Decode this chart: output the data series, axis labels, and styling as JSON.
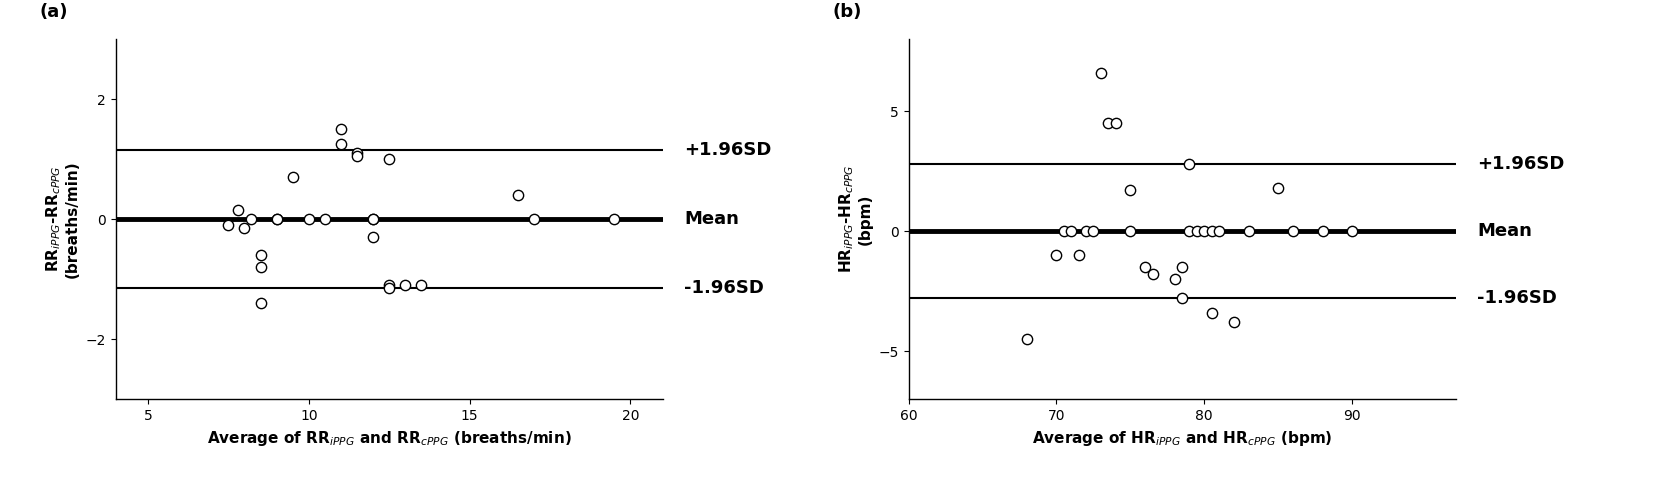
{
  "panel_a": {
    "title": "(a)",
    "xlabel": "Average of RR$_{iPPG}$ and RR$_{cPPG}$ (breaths/min)",
    "ylabel": "RR$_{iPPG}$-RR$_{cPPG}$\n(breaths/min)",
    "xlim": [
      4,
      21
    ],
    "ylim": [
      -3,
      3
    ],
    "xticks": [
      5,
      10,
      15,
      20
    ],
    "yticks": [
      -2,
      0,
      2
    ],
    "mean": 0.0,
    "upper_sd": 1.15,
    "lower_sd": -1.15,
    "scatter_x": [
      7.5,
      7.8,
      8.0,
      8.2,
      8.5,
      8.5,
      8.5,
      9.0,
      9.0,
      9.5,
      10.0,
      10.5,
      11.0,
      11.0,
      11.5,
      11.5,
      12.0,
      12.0,
      12.0,
      12.5,
      12.5,
      12.5,
      13.0,
      13.5,
      16.5,
      17.0,
      19.5
    ],
    "scatter_y": [
      -0.1,
      0.15,
      -0.15,
      0.0,
      -0.6,
      -0.8,
      -1.4,
      0.0,
      0.0,
      0.7,
      0.0,
      0.0,
      1.25,
      1.5,
      1.1,
      1.05,
      -0.3,
      0.0,
      0.0,
      -1.1,
      -1.15,
      1.0,
      -1.1,
      -1.1,
      0.4,
      0.0,
      0.0
    ],
    "label_upper": "+1.96SD",
    "label_mean": "Mean",
    "label_lower": "-1.96SD"
  },
  "panel_b": {
    "title": "(b)",
    "xlabel": "Average of HR$_{iPPG}$ and HR$_{cPPG}$ (bpm)",
    "ylabel": "HR$_{iPPG}$-HR$_{cPPG}$\n(bpm)",
    "xlim": [
      60,
      97
    ],
    "ylim": [
      -7,
      8
    ],
    "xticks": [
      60,
      70,
      80,
      90
    ],
    "yticks": [
      -5,
      0,
      5
    ],
    "mean": 0.0,
    "upper_sd": 2.8,
    "lower_sd": -2.8,
    "scatter_x": [
      68.0,
      70.0,
      70.5,
      71.0,
      71.5,
      72.0,
      72.5,
      73.0,
      73.5,
      74.0,
      75.0,
      75.0,
      76.0,
      76.5,
      78.0,
      78.5,
      78.5,
      79.0,
      79.0,
      79.5,
      80.0,
      80.5,
      80.5,
      81.0,
      82.0,
      83.0,
      85.0,
      86.0,
      88.0,
      90.0
    ],
    "scatter_y": [
      -4.5,
      -1.0,
      0.0,
      0.0,
      -1.0,
      0.0,
      0.0,
      6.6,
      4.5,
      4.5,
      1.7,
      0.0,
      -1.5,
      -1.8,
      -2.0,
      -2.8,
      -1.5,
      0.0,
      2.8,
      0.0,
      0.0,
      0.0,
      -3.4,
      0.0,
      -3.8,
      0.0,
      1.8,
      0.0,
      0.0,
      0.0
    ],
    "label_upper": "+1.96SD",
    "label_mean": "Mean",
    "label_lower": "-1.96SD"
  },
  "figure_bg": "#ffffff",
  "line_color": "#000000",
  "scatter_facecolor": "#ffffff",
  "scatter_edgecolor": "#000000",
  "mean_linewidth": 3.5,
  "sd_linewidth": 1.5,
  "scatter_size": 55,
  "scatter_linewidth": 1.0,
  "fontsize_axlabel": 11,
  "fontsize_title": 13,
  "fontsize_annot": 13,
  "fontsize_tick": 10
}
